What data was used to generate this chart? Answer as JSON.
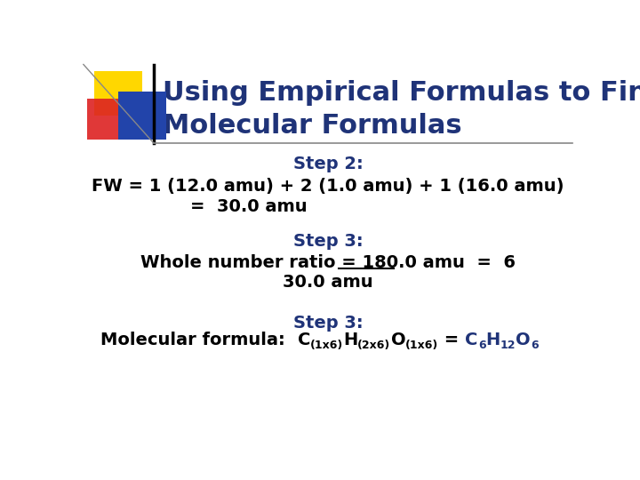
{
  "title_line1": "Using Empirical Formulas to Find",
  "title_line2": "Molecular Formulas",
  "title_color": "#1F3378",
  "title_fontsize": 22,
  "bg_color": "#FFFFFF",
  "step2_label": "Step 2:",
  "step2_line1": "FW = 1 (12.0 amu) + 2 (1.0 amu) + 1 (16.0 amu)",
  "step2_line2": "=  30.0 amu",
  "step3a_label": "Step 3:",
  "step3a_line1": "Whole number ratio = 180.0 amu  =  6",
  "step3a_line2": "30.0 amu",
  "step3b_label": "Step 3:",
  "accent_color": "#1F3378",
  "body_color": "#000000",
  "body_fontsize": 14,
  "label_fontsize": 14,
  "decor_yellow": "#FFD700",
  "decor_red": "#DD2222",
  "decor_blue": "#2244AA",
  "line_color": "#888888"
}
